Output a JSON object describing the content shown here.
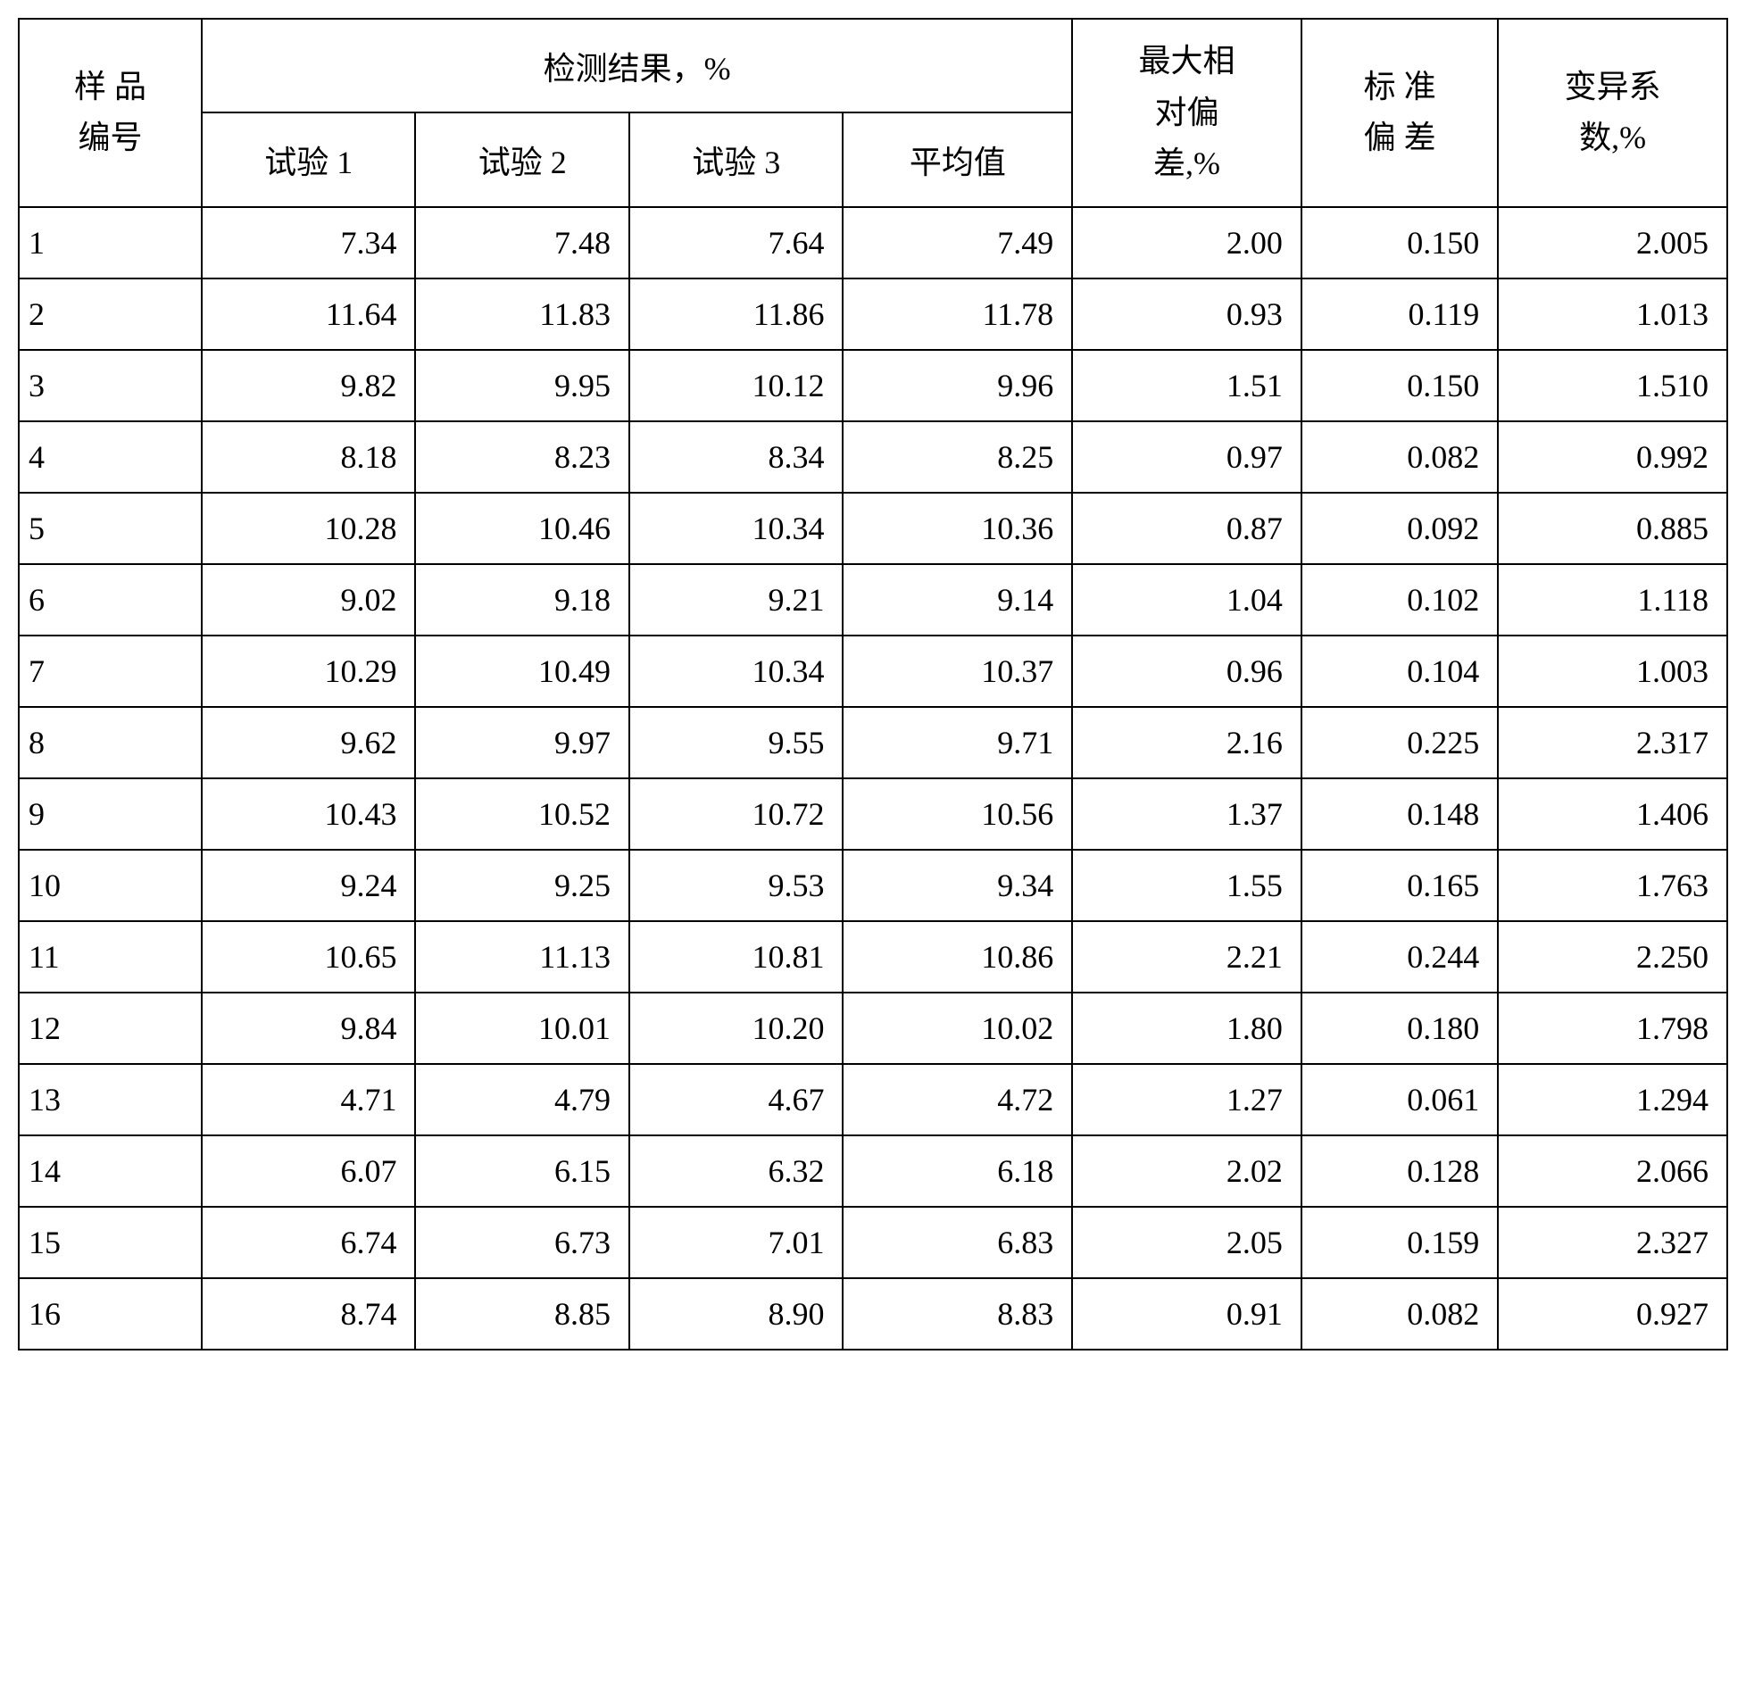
{
  "table": {
    "headers": {
      "sample_id": "样 品\n编号",
      "results_group": "检测结果，%",
      "trial1": "试验 1",
      "trial2": "试验 2",
      "trial3": "试验 3",
      "average": "平均值",
      "max_relative_deviation": "最大相\n对偏\n差,%",
      "std_deviation": "标 准\n偏 差",
      "cv": "变异系\n数,%"
    },
    "rows": [
      {
        "id": "1",
        "t1": "7.34",
        "t2": "7.48",
        "t3": "7.64",
        "avg": "7.49",
        "mrd": "2.00",
        "sd": "0.150",
        "cv": "2.005"
      },
      {
        "id": "2",
        "t1": "11.64",
        "t2": "11.83",
        "t3": "11.86",
        "avg": "11.78",
        "mrd": "0.93",
        "sd": "0.119",
        "cv": "1.013"
      },
      {
        "id": "3",
        "t1": "9.82",
        "t2": "9.95",
        "t3": "10.12",
        "avg": "9.96",
        "mrd": "1.51",
        "sd": "0.150",
        "cv": "1.510"
      },
      {
        "id": "4",
        "t1": "8.18",
        "t2": "8.23",
        "t3": "8.34",
        "avg": "8.25",
        "mrd": "0.97",
        "sd": "0.082",
        "cv": "0.992"
      },
      {
        "id": "5",
        "t1": "10.28",
        "t2": "10.46",
        "t3": "10.34",
        "avg": "10.36",
        "mrd": "0.87",
        "sd": "0.092",
        "cv": "0.885"
      },
      {
        "id": "6",
        "t1": "9.02",
        "t2": "9.18",
        "t3": "9.21",
        "avg": "9.14",
        "mrd": "1.04",
        "sd": "0.102",
        "cv": "1.118"
      },
      {
        "id": "7",
        "t1": "10.29",
        "t2": "10.49",
        "t3": "10.34",
        "avg": "10.37",
        "mrd": "0.96",
        "sd": "0.104",
        "cv": "1.003"
      },
      {
        "id": "8",
        "t1": "9.62",
        "t2": "9.97",
        "t3": "9.55",
        "avg": "9.71",
        "mrd": "2.16",
        "sd": "0.225",
        "cv": "2.317"
      },
      {
        "id": "9",
        "t1": "10.43",
        "t2": "10.52",
        "t3": "10.72",
        "avg": "10.56",
        "mrd": "1.37",
        "sd": "0.148",
        "cv": "1.406"
      },
      {
        "id": "10",
        "t1": "9.24",
        "t2": "9.25",
        "t3": "9.53",
        "avg": "9.34",
        "mrd": "1.55",
        "sd": "0.165",
        "cv": "1.763"
      },
      {
        "id": "11",
        "t1": "10.65",
        "t2": "11.13",
        "t3": "10.81",
        "avg": "10.86",
        "mrd": "2.21",
        "sd": "0.244",
        "cv": "2.250"
      },
      {
        "id": "12",
        "t1": "9.84",
        "t2": "10.01",
        "t3": "10.20",
        "avg": "10.02",
        "mrd": "1.80",
        "sd": "0.180",
        "cv": "1.798"
      },
      {
        "id": "13",
        "t1": "4.71",
        "t2": "4.79",
        "t3": "4.67",
        "avg": "4.72",
        "mrd": "1.27",
        "sd": "0.061",
        "cv": "1.294"
      },
      {
        "id": "14",
        "t1": "6.07",
        "t2": "6.15",
        "t3": "6.32",
        "avg": "6.18",
        "mrd": "2.02",
        "sd": "0.128",
        "cv": "2.066"
      },
      {
        "id": "15",
        "t1": "6.74",
        "t2": "6.73",
        "t3": "7.01",
        "avg": "6.83",
        "mrd": "2.05",
        "sd": "0.159",
        "cv": "2.327"
      },
      {
        "id": "16",
        "t1": "8.74",
        "t2": "8.85",
        "t3": "8.90",
        "avg": "8.83",
        "mrd": "0.91",
        "sd": "0.082",
        "cv": "0.927"
      }
    ],
    "column_widths": {
      "sample_id": "12%",
      "trial": "11%",
      "average": "11%",
      "mrd": "12%",
      "sd": "11%",
      "cv": "11%"
    },
    "styling": {
      "border_color": "#000000",
      "border_width": "2px",
      "background_color": "#ffffff",
      "text_color": "#000000",
      "font_size": "36px",
      "font_family": "SimSun"
    }
  }
}
